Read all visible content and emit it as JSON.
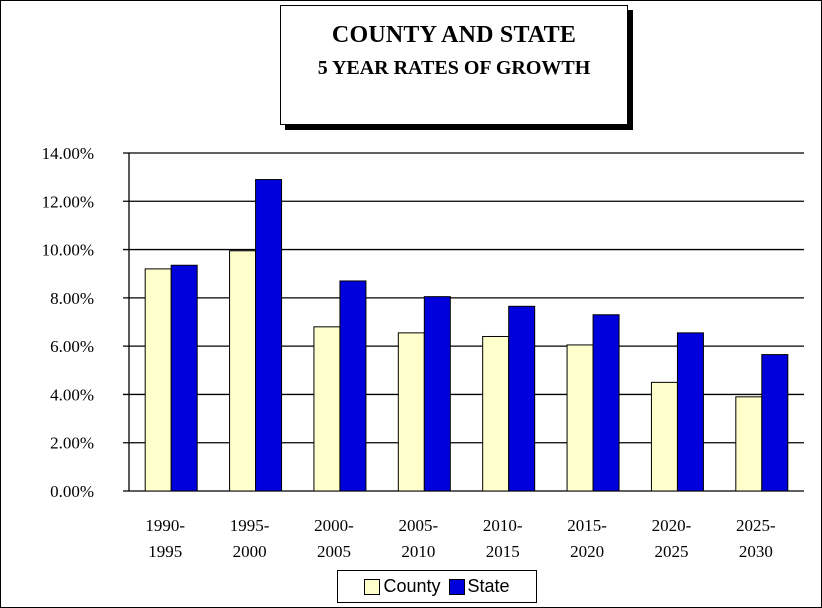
{
  "title": {
    "line1": "COUNTY AND STATE",
    "line2": "5 YEAR RATES OF GROWTH"
  },
  "colors": {
    "county": "#ffffcc",
    "state": "#0000dd",
    "gridline": "#000000"
  },
  "legend": {
    "county_label": "County",
    "state_label": "State"
  },
  "chart_data": {
    "type": "bar",
    "title": "COUNTY AND STATE 5 YEAR RATES OF GROWTH",
    "xlabel": "",
    "ylabel": "",
    "categories": [
      [
        "1990-",
        "1995"
      ],
      [
        "1995-",
        "2000"
      ],
      [
        "2000-",
        "2005"
      ],
      [
        "2005-",
        "2010"
      ],
      [
        "2010-",
        "2015"
      ],
      [
        "2015-",
        "2020"
      ],
      [
        "2020-",
        "2025"
      ],
      [
        "2025-",
        "2030"
      ]
    ],
    "series": [
      {
        "name": "County",
        "values": [
          9.2,
          9.95,
          6.8,
          6.55,
          6.4,
          6.05,
          4.5,
          3.9
        ]
      },
      {
        "name": "State",
        "values": [
          9.35,
          12.9,
          8.7,
          8.05,
          7.65,
          7.3,
          6.55,
          5.65
        ]
      }
    ],
    "ylim": [
      0,
      14
    ],
    "yticks": [
      "0.00%",
      "2.00%",
      "4.00%",
      "6.00%",
      "8.00%",
      "10.00%",
      "12.00%",
      "14.00%"
    ],
    "grid": true,
    "legend_position": "bottom"
  }
}
